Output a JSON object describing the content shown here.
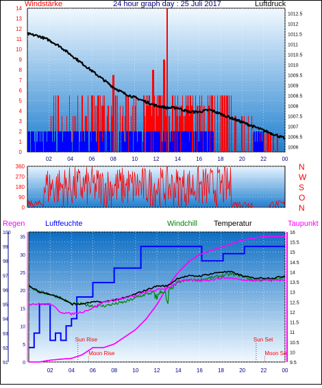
{
  "header": {
    "title": "24 hour graph day : 25 Juli 2017",
    "left_label": "Windstärke",
    "right_label": "Luftdruck"
  },
  "colors": {
    "bg_gradient_top": "#e8f4ff",
    "bg_gradient_bottom": "#1677c8",
    "wind": "#ff0000",
    "gust_blue": "#0000ff",
    "pressure": "#000000",
    "direction": "#ff0000",
    "rain": "#0000ff",
    "humidity": "#0000ff",
    "temperature": "#000000",
    "windchill": "#008000",
    "dewpoint": "#ff00ff",
    "left_axis_text": "#ff0000",
    "magenta_axis_text": "#ff00ff",
    "blue_axis_text": "#000080"
  },
  "chart_data": [
    {
      "type": "line",
      "title": "24 hour graph day : 25 Juli 2017",
      "x_ticks": [
        "02",
        "04",
        "06",
        "08",
        "10",
        "12",
        "14",
        "16",
        "18",
        "20",
        "22",
        "00"
      ],
      "y_left": {
        "label": "Windstärke",
        "ticks": [
          "0",
          "1",
          "2",
          "3",
          "4",
          "5",
          "6",
          "7",
          "8",
          "9",
          "10",
          "11",
          "12",
          "13",
          "14"
        ],
        "range": [
          0,
          14
        ]
      },
      "y_right": {
        "label": "Luftdruck",
        "ticks": [
          "1006",
          "1006.5",
          "1007",
          "1007.5",
          "1008",
          "1008.5",
          "1009",
          "1009.5",
          "1010",
          "1010.5",
          "1011",
          "1011.5",
          "1012",
          "1012.5"
        ],
        "range": [
          1005.75,
          1012.75
        ]
      },
      "series": [
        {
          "name": "Luftdruck",
          "x_hours": [
            0,
            1,
            2,
            3,
            4,
            5,
            6,
            7,
            8,
            9,
            10,
            11,
            12,
            13,
            14,
            15,
            16,
            17,
            18,
            19,
            20,
            21,
            22,
            23,
            24
          ],
          "values": [
            1011.5,
            1011.4,
            1011.2,
            1010.9,
            1010.5,
            1010.1,
            1009.7,
            1009.3,
            1008.9,
            1008.6,
            1008.4,
            1008.2,
            1008.0,
            1007.9,
            1007.9,
            1007.7,
            1007.7,
            1007.8,
            1007.6,
            1007.4,
            1007.2,
            1007.0,
            1006.8,
            1006.6,
            1006.4
          ]
        }
      ],
      "grid": true
    },
    {
      "type": "scatter",
      "x_ticks": [
        "02",
        "04",
        "06",
        "08",
        "10",
        "12",
        "14",
        "16",
        "18",
        "20",
        "22",
        "00"
      ],
      "y_left": {
        "ticks": [
          "0",
          "90",
          "180",
          "270",
          "360"
        ],
        "range": [
          0,
          360
        ]
      },
      "y_right": {
        "ticks": [
          "N",
          "W",
          "S",
          "O",
          "N"
        ]
      },
      "series": [
        {
          "name": "Windrichtung",
          "description": "wind direction, broadly scattered across all directions"
        }
      ]
    },
    {
      "type": "line",
      "x_ticks": [
        "02",
        "04",
        "06",
        "08",
        "10",
        "12",
        "14",
        "16",
        "18",
        "20",
        "22",
        "00"
      ],
      "legend": [
        "Regen",
        "Luftfeuchte",
        "Windchill",
        "Temperatur",
        "Taupunkt"
      ],
      "y_regen": {
        "label": "Regen",
        "ticks": [
          "0",
          "5",
          "10",
          "15",
          "20",
          "25",
          "30",
          "35"
        ],
        "range": [
          0,
          36.25
        ]
      },
      "y_humidity": {
        "label": "Luftfeuchte",
        "ticks": [
          "91",
          "92",
          "93",
          "94",
          "95",
          "96",
          "97",
          "98",
          "99",
          "100"
        ],
        "range": [
          91,
          100
        ]
      },
      "y_temp": {
        "ticks": [
          "9.5",
          "10",
          "10.5",
          "11",
          "11.5",
          "12",
          "12.5",
          "13",
          "13.5",
          "14",
          "14.5",
          "15",
          "15.5",
          "16"
        ],
        "range": [
          9.5,
          16
        ]
      },
      "annotations": [
        "Sun Rise",
        "Moon Rise",
        "Sun Set",
        "Moon Set"
      ],
      "series": [
        {
          "name": "Regen",
          "x_hours": [
            0,
            1,
            2,
            3,
            4,
            5,
            6,
            7,
            8,
            9,
            10,
            11,
            12,
            13,
            14,
            15,
            16,
            17,
            18,
            19,
            20,
            21,
            22,
            23,
            24
          ],
          "values": [
            0,
            0,
            0.5,
            0.8,
            1,
            2,
            4,
            4,
            5,
            7,
            9,
            12,
            16,
            21,
            25,
            28,
            30,
            31,
            32,
            33,
            34,
            34.5,
            35,
            35,
            35
          ]
        },
        {
          "name": "Luftfeuchte",
          "x_hours": [
            0,
            0.5,
            1,
            1.5,
            2,
            2.5,
            3,
            3.5,
            4,
            4.5,
            5,
            6,
            7,
            8,
            9,
            10,
            10.5,
            11,
            14,
            16,
            16.2,
            18,
            18.2,
            20,
            20.2,
            24
          ],
          "values": [
            92,
            93,
            95,
            95,
            92.5,
            93,
            92.5,
            93.5,
            94,
            95.5,
            95.5,
            96.5,
            96.5,
            97.5,
            97.5,
            97.5,
            99,
            99,
            99,
            99,
            98,
            98,
            98.5,
            98.5,
            99,
            99
          ]
        },
        {
          "name": "Temperatur",
          "x_hours": [
            0,
            1,
            2,
            3,
            4,
            5,
            6,
            7,
            8,
            9,
            10,
            11,
            12,
            13,
            14,
            15,
            16,
            17,
            18,
            19,
            20,
            21,
            22,
            23,
            24
          ],
          "values": [
            13.3,
            13.0,
            12.9,
            12.7,
            12.4,
            12.4,
            12.5,
            12.5,
            12.6,
            12.7,
            12.9,
            13.1,
            13.3,
            13.3,
            13.7,
            13.8,
            13.8,
            13.9,
            14.0,
            14.0,
            13.8,
            13.7,
            13.7,
            13.7,
            13.8
          ]
        },
        {
          "name": "Windchill",
          "x_hours": [
            0,
            1,
            2,
            3,
            4,
            5,
            6,
            7,
            8,
            9,
            10,
            11,
            12,
            13,
            14,
            15,
            16,
            17,
            18,
            19,
            20,
            21,
            22,
            23,
            24
          ],
          "values": [
            13.3,
            13.0,
            12.9,
            12.7,
            12.4,
            12.4,
            12.3,
            12.3,
            12.4,
            12.5,
            12.7,
            12.9,
            13.0,
            13.0,
            13.5,
            13.6,
            13.6,
            13.7,
            13.8,
            13.9,
            13.8,
            13.6,
            13.6,
            13.6,
            13.8
          ]
        },
        {
          "name": "Taupunkt",
          "x_hours": [
            0,
            1,
            2,
            3,
            4,
            5,
            6,
            7,
            8,
            9,
            10,
            11,
            12,
            13,
            14,
            15,
            16,
            17,
            18,
            19,
            20,
            21,
            22,
            23,
            24
          ],
          "values": [
            12.4,
            12.4,
            12.4,
            12.0,
            11.9,
            12.0,
            12.2,
            12.5,
            12.6,
            12.7,
            12.8,
            13.0,
            13.1,
            13.2,
            13.5,
            13.6,
            13.6,
            13.6,
            13.7,
            13.7,
            13.6,
            13.6,
            13.6,
            13.6,
            13.6
          ]
        }
      ],
      "grid": true
    }
  ]
}
